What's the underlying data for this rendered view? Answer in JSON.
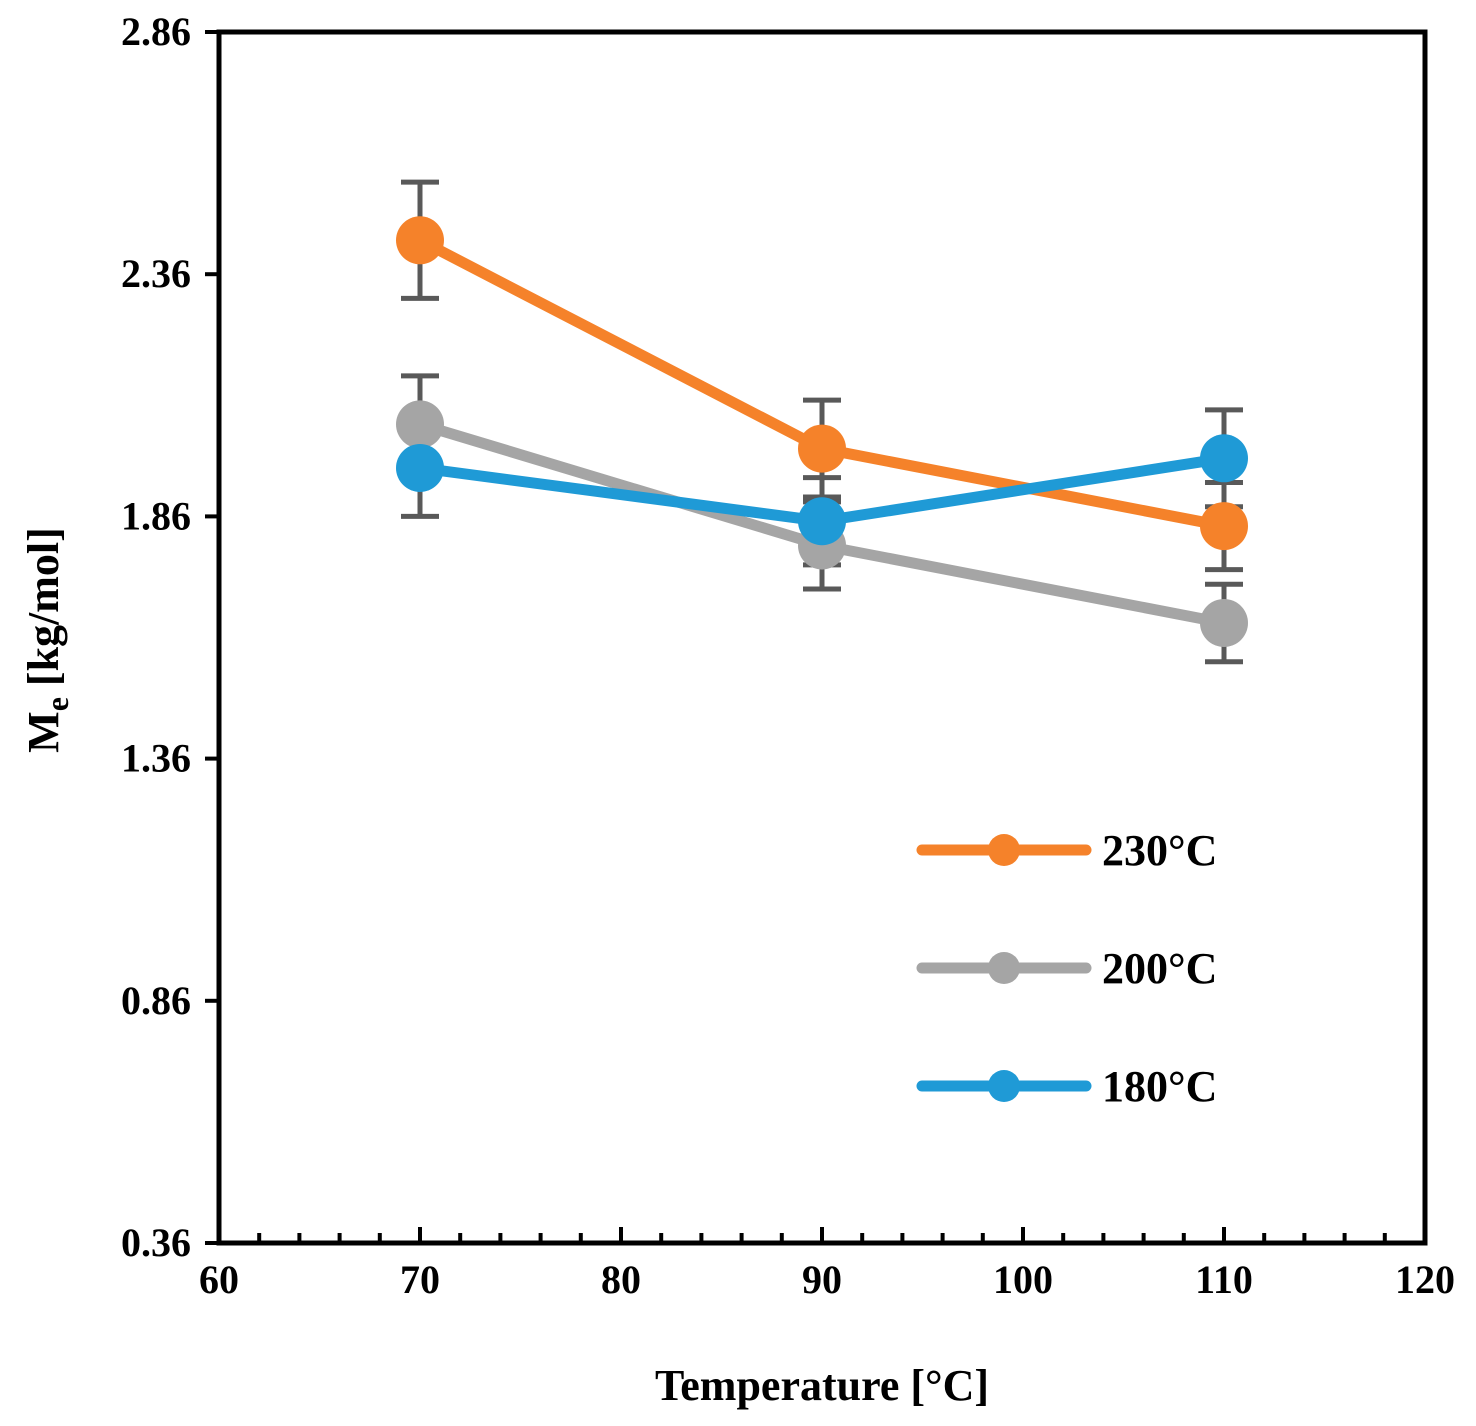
{
  "chart_data": {
    "type": "line",
    "title": "",
    "xlabel": "Temperature [°C]",
    "ylabel_main": "M",
    "ylabel_sub": "e",
    "ylabel_rest": " [kg/mol]",
    "xlim": [
      60,
      120
    ],
    "ylim": [
      0.36,
      2.86
    ],
    "xticks": [
      60,
      70,
      80,
      90,
      100,
      110,
      120
    ],
    "xtick_labels": [
      "60",
      "70",
      "80",
      "90",
      "100",
      "110",
      "120"
    ],
    "yticks": [
      0.36,
      0.86,
      1.36,
      1.86,
      2.36,
      2.86
    ],
    "ytick_labels": [
      "0.36",
      "0.86",
      "1.36",
      "1.86",
      "2.36",
      "2.86"
    ],
    "x_minor_step": 2,
    "grid": false,
    "legend_position": "right-center",
    "x": [
      70,
      90,
      110
    ],
    "series": [
      {
        "name": "230°C",
        "color": "#f5822a",
        "values": [
          2.43,
          2.0,
          1.84
        ],
        "errors": [
          0.12,
          0.1,
          0.09
        ]
      },
      {
        "name": "200°C",
        "color": "#a5a5a5",
        "values": [
          2.05,
          1.8,
          1.64
        ],
        "errors": [
          0.1,
          0.09,
          0.08
        ]
      },
      {
        "name": "180°C",
        "color": "#1f9ad6",
        "values": [
          1.96,
          1.85,
          1.98
        ],
        "errors": [
          0.1,
          0.09,
          0.1
        ]
      }
    ]
  }
}
